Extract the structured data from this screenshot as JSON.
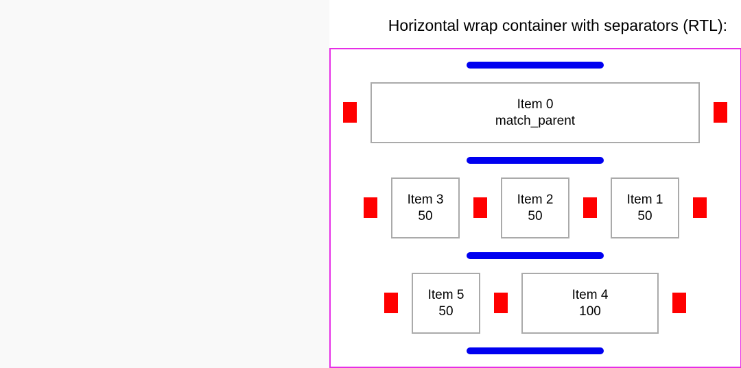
{
  "title": "Horizontal wrap container with separators (RTL):",
  "colors": {
    "container_border": "#e62ee6",
    "line_separator": "#0000f0",
    "item_separator": "#ff0000",
    "item_border": "#aaaaaa"
  },
  "rows": [
    {
      "items": [
        {
          "name": "Item 0",
          "size": "match_parent"
        }
      ]
    },
    {
      "items": [
        {
          "name": "Item 3",
          "size": "50"
        },
        {
          "name": "Item 2",
          "size": "50"
        },
        {
          "name": "Item 1",
          "size": "50"
        }
      ]
    },
    {
      "items": [
        {
          "name": "Item 5",
          "size": "50"
        },
        {
          "name": "Item 4",
          "size": "100"
        }
      ]
    }
  ]
}
